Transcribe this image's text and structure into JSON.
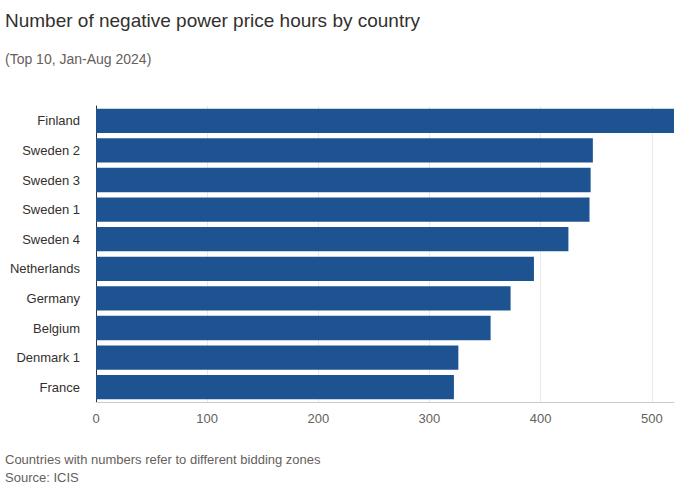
{
  "chart_data": {
    "type": "bar",
    "title": "Number of negative power price hours by country",
    "subtitle": "(Top 10, Jan-Aug 2024)",
    "note": "Countries with numbers refer to different bidding zones",
    "source": "Source: ICIS",
    "orientation": "horizontal",
    "categories": [
      "Finland",
      "Sweden 2",
      "Sweden 3",
      "Sweden 1",
      "Sweden 4",
      "Netherlands",
      "Germany",
      "Belgium",
      "Denmark 1",
      "France"
    ],
    "values": [
      520,
      447,
      445,
      444,
      425,
      394,
      373,
      355,
      326,
      322
    ],
    "color": "#1e5391",
    "xlim": [
      0,
      520
    ],
    "xticks": [
      0,
      100,
      200,
      300,
      400,
      500
    ],
    "grid": true
  }
}
